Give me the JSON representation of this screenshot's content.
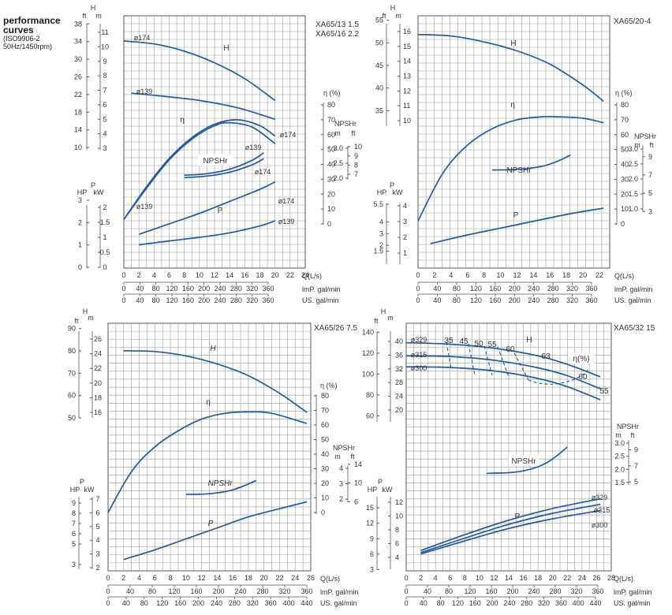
{
  "sidebar": {
    "line1": "performance",
    "line2": "curves",
    "line3": "(ISO9906-2",
    "line4": "50Hz/1450rpm)"
  },
  "style": {
    "curve_color": "#1f5aa6",
    "grid_color": "#9a9a9a",
    "text_color": "#333333"
  },
  "chart_data": [
    {
      "type": "line",
      "model": [
        "XA65/13 1.5",
        "XA65/16 2.2"
      ],
      "x": {
        "label": "Q(L/s)",
        "range": [
          0,
          24
        ],
        "ticks": [
          0,
          2,
          4,
          6,
          8,
          10,
          12,
          14,
          16,
          18,
          20,
          22,
          24
        ],
        "imp_label": "lmP. gal/min",
        "imp_ticks": [
          0,
          40,
          80,
          120,
          160,
          200,
          240,
          280,
          320,
          360
        ],
        "us_label": "US. gal/min",
        "us_ticks": [
          0,
          40,
          80,
          120,
          160,
          200,
          240,
          280,
          320,
          360
        ]
      },
      "head": {
        "unit_ft": "ft",
        "unit_m": "m",
        "title": "H",
        "ft_ticks": [
          10,
          14,
          18,
          22,
          26,
          30,
          34,
          38
        ],
        "m_ticks": [
          3,
          4,
          5,
          6,
          7,
          8,
          9,
          10,
          11
        ]
      },
      "eff": {
        "label": "η (%)",
        "ticks": [
          0,
          10,
          20,
          30,
          40,
          50,
          60,
          70,
          80
        ]
      },
      "npsh": {
        "label": "NPSHr",
        "unit_m": "m",
        "unit_ft": "ft",
        "m_ticks": [
          2.0,
          2.5,
          3.0
        ],
        "ft_ticks": [
          7,
          8,
          9,
          10
        ]
      },
      "power": {
        "label_hp": "HP",
        "label_kw": "kW",
        "title": "P",
        "hp_ticks": [
          0,
          1,
          2,
          3
        ],
        "kw_ticks": [
          0,
          0.5,
          1,
          1.5,
          2
        ]
      },
      "series": [
        {
          "name": "ø174",
          "kind": "H",
          "q": [
            0,
            4,
            8,
            12,
            16,
            20
          ],
          "v": [
            10.4,
            10.2,
            9.7,
            8.9,
            7.8,
            6.3
          ]
        },
        {
          "name": "ø139",
          "kind": "H",
          "q": [
            1,
            5,
            10,
            15,
            20
          ],
          "v": [
            6.8,
            6.6,
            6.3,
            5.8,
            5.0
          ]
        },
        {
          "name": "ø174",
          "kind": "eff",
          "q": [
            0,
            3,
            6,
            9,
            12,
            15,
            18,
            20
          ],
          "v": [
            3,
            25,
            44,
            58,
            67,
            70,
            66,
            59
          ]
        },
        {
          "name": "ø139",
          "kind": "eff",
          "q": [
            0,
            3,
            6,
            9,
            12,
            14,
            17,
            20
          ],
          "v": [
            3,
            24,
            43,
            57,
            66,
            68,
            65,
            54
          ]
        },
        {
          "name": "ø139",
          "kind": "NPSHr",
          "q": [
            8,
            11,
            14,
            17,
            18.5
          ],
          "v": [
            2.1,
            2.15,
            2.3,
            2.6,
            2.85
          ]
        },
        {
          "name": "ø174",
          "kind": "NPSHr",
          "q": [
            8,
            11,
            14,
            17,
            18.5
          ],
          "v": [
            2.02,
            2.07,
            2.2,
            2.45,
            2.65
          ]
        },
        {
          "name": "ø174",
          "kind": "P",
          "q": [
            2,
            6,
            10,
            14,
            18,
            20
          ],
          "v": [
            1.1,
            1.45,
            1.8,
            2.2,
            2.6,
            2.85
          ]
        },
        {
          "name": "ø139",
          "kind": "P",
          "q": [
            2,
            6,
            10,
            14,
            18,
            20
          ],
          "v": [
            0.75,
            0.88,
            1.0,
            1.15,
            1.38,
            1.55
          ]
        }
      ],
      "annotations": {
        "npshr": "NPSHr",
        "h": "H",
        "p": "P",
        "eta": "η",
        "d174": "ø174",
        "d139": "ø139"
      }
    },
    {
      "type": "line",
      "model": [
        "XA65/20-4"
      ],
      "x": {
        "label": "Q(L/s)",
        "range": [
          0,
          22
        ],
        "ticks": [
          0,
          2,
          4,
          6,
          8,
          10,
          12,
          14,
          16,
          18,
          20,
          22
        ],
        "imp_label": "lmP. gal/min",
        "imp_ticks": [
          0,
          40,
          80,
          120,
          160,
          200,
          240,
          280,
          320,
          360
        ],
        "us_label": "US. gal/min",
        "us_ticks": [
          0,
          40,
          80,
          120,
          160,
          200,
          240,
          280,
          320,
          360
        ]
      },
      "head": {
        "unit_ft": "ft",
        "unit_m": "m",
        "title": "H",
        "ft_ticks": [
          35,
          40,
          45,
          50,
          55
        ],
        "m_ticks": [
          10,
          11,
          12,
          13,
          14,
          15,
          16
        ]
      },
      "eff": {
        "label": "η (%)",
        "ticks": [
          0,
          10,
          20,
          30,
          40,
          50,
          60,
          70,
          80
        ]
      },
      "npsh": {
        "label": "NPSHr",
        "unit_m": "m",
        "unit_ft": "ft",
        "m_ticks": [
          1.0,
          1.5,
          2.0,
          2.5,
          3.0
        ],
        "ft_ticks": [
          3,
          5,
          7,
          9
        ]
      },
      "power": {
        "label_hp": "HP",
        "label_kw": "kW",
        "title": "P",
        "hp_ticks": [
          1.5,
          2,
          3,
          4,
          5.5
        ],
        "kw_ticks": [
          1,
          2,
          3,
          4
        ]
      },
      "series": [
        {
          "name": "",
          "kind": "H",
          "q": [
            0,
            4,
            8,
            12,
            16,
            20,
            22.5
          ],
          "v": [
            15.8,
            15.7,
            15.3,
            14.7,
            13.8,
            12.4,
            11.3
          ]
        },
        {
          "name": "",
          "kind": "eff",
          "q": [
            0,
            3,
            6,
            9,
            12,
            15,
            17,
            20,
            22.5
          ],
          "v": [
            2,
            34,
            53,
            64,
            70,
            72,
            72,
            71,
            68
          ]
        },
        {
          "name": "",
          "kind": "NPSHr",
          "q": [
            9,
            12,
            15,
            17,
            18.5
          ],
          "v": [
            2.3,
            2.32,
            2.42,
            2.6,
            2.8
          ]
        },
        {
          "name": "",
          "kind": "P",
          "q": [
            1.5,
            6,
            12,
            18,
            22.5
          ],
          "v": [
            1.6,
            2.15,
            2.8,
            3.45,
            3.85
          ]
        }
      ],
      "annotations": {
        "npshr": "NPSHr",
        "h": "H",
        "p": "P",
        "eta": "η"
      }
    },
    {
      "type": "line",
      "model": [
        "XA65/26 7.5"
      ],
      "x": {
        "label": "Q(L/s)",
        "range": [
          0,
          26
        ],
        "ticks": [
          0,
          2,
          4,
          6,
          8,
          10,
          12,
          14,
          16,
          18,
          20,
          22,
          24,
          26
        ],
        "imp_label": "lmP. gal/min",
        "imp_ticks": [
          0,
          40,
          80,
          120,
          160,
          200,
          240,
          280,
          320,
          360
        ],
        "us_label": "US. gal/min",
        "us_ticks": [
          0,
          40,
          80,
          120,
          160,
          200,
          240,
          280,
          320,
          360,
          400,
          440
        ]
      },
      "head": {
        "unit_ft": "ft",
        "unit_m": "m",
        "title": "H",
        "ft_ticks": [
          50,
          60,
          70,
          80,
          90
        ],
        "m_ticks": [
          16,
          18,
          20,
          22,
          24,
          26
        ]
      },
      "eff": {
        "label": "η (%)",
        "ticks": [
          0,
          10,
          20,
          30,
          40,
          50,
          60,
          70,
          80
        ]
      },
      "npsh": {
        "label": "NPSHr",
        "unit_m": "m",
        "unit_ft": "ft",
        "m_ticks": [
          2,
          3,
          4
        ],
        "ft_ticks": [
          6,
          10,
          14
        ]
      },
      "power": {
        "label_hp": "HP",
        "label_kw": "kW",
        "title": "P",
        "hp_ticks": [
          3,
          5,
          6,
          7,
          8,
          9
        ],
        "kw_ticks": [
          2,
          3,
          4,
          5,
          6,
          7
        ]
      },
      "series": [
        {
          "name": "",
          "kind": "H",
          "q": [
            2,
            6,
            10,
            14,
            18,
            22,
            25.5
          ],
          "v": [
            24.4,
            24.3,
            23.7,
            22.6,
            21.0,
            18.6,
            16.0
          ]
        },
        {
          "name": "",
          "kind": "eff",
          "q": [
            0,
            3,
            6,
            9,
            12,
            15,
            18,
            21,
            25.5
          ],
          "v": [
            0,
            28,
            45,
            56,
            64,
            68,
            69,
            68,
            61
          ]
        },
        {
          "name": "",
          "kind": "NPSHr",
          "q": [
            10,
            13,
            16,
            19
          ],
          "v": [
            2.3,
            2.35,
            2.6,
            3.2
          ]
        },
        {
          "name": "",
          "kind": "P",
          "q": [
            2,
            6,
            10,
            14,
            18,
            22,
            25.5
          ],
          "v": [
            2.6,
            3.3,
            4.1,
            4.9,
            5.7,
            6.3,
            6.8
          ]
        }
      ],
      "annotations": {
        "npshr": "NPSHr",
        "h": "H",
        "p": "P",
        "eta": "η"
      }
    },
    {
      "type": "line",
      "model": [
        "XA65/32 15"
      ],
      "x": {
        "label": "Q(L/s)",
        "range": [
          0,
          28
        ],
        "ticks": [
          0,
          2,
          4,
          6,
          8,
          10,
          12,
          14,
          16,
          18,
          20,
          22,
          24,
          26,
          28
        ],
        "imp_label": "lmP. gal/min",
        "imp_ticks": [
          0,
          40,
          80,
          120,
          160,
          200,
          240,
          280,
          320,
          360
        ],
        "us_label": "US. gal/min",
        "us_ticks": [
          0,
          40,
          80,
          120,
          160,
          200,
          240,
          280,
          320,
          360,
          400,
          440
        ]
      },
      "head": {
        "unit_ft": "ft",
        "unit_m": "m",
        "title": "H",
        "ft_ticks": [
          60,
          80,
          100,
          120,
          140
        ],
        "m_ticks": [
          20,
          24,
          28,
          32,
          36,
          40
        ]
      },
      "eff": {
        "label": "η(%)",
        "contour_labels": [
          "35",
          "45",
          "50",
          "55",
          "60",
          "63",
          "60",
          "55"
        ]
      },
      "npsh": {
        "label": "NPSHr",
        "unit_m": "m",
        "unit_ft": "ft",
        "m_ticks": [
          1.5,
          2.0,
          2.5,
          3.0
        ],
        "ft_ticks": [
          5,
          7,
          9
        ]
      },
      "power": {
        "label_hp": "HP",
        "label_kw": "kW",
        "title": "P",
        "hp_ticks": [
          3,
          6,
          9,
          12,
          15
        ],
        "kw_ticks": [
          4,
          6,
          8,
          10,
          12
        ]
      },
      "series": [
        {
          "name": "ø329",
          "kind": "H",
          "q": [
            0,
            6,
            12,
            18,
            22,
            26.5
          ],
          "v": [
            39.6,
            39.2,
            38.0,
            35.8,
            33.3,
            29.7
          ]
        },
        {
          "name": "ø315",
          "kind": "H",
          "q": [
            0,
            6,
            12,
            18,
            22,
            26.5
          ],
          "v": [
            35.8,
            35.6,
            34.5,
            32.3,
            30.0,
            26.2
          ]
        },
        {
          "name": "ø300",
          "kind": "H",
          "q": [
            0,
            6,
            12,
            18,
            22,
            26.5
          ],
          "v": [
            32.6,
            32.4,
            31.4,
            29.2,
            26.8,
            23.0
          ]
        },
        {
          "name": "",
          "kind": "NPSHr",
          "q": [
            11,
            15,
            18,
            20,
            22
          ],
          "v": [
            1.85,
            1.9,
            2.1,
            2.4,
            2.85
          ]
        },
        {
          "name": "ø329",
          "kind": "P",
          "q": [
            2,
            8,
            14,
            20,
            26.5
          ],
          "v": [
            5.0,
            7.3,
            9.4,
            11.1,
            12.5
          ]
        },
        {
          "name": "ø315",
          "kind": "P",
          "q": [
            2,
            8,
            14,
            20,
            26.5
          ],
          "v": [
            4.7,
            6.8,
            8.8,
            10.4,
            11.7
          ]
        },
        {
          "name": "ø300",
          "kind": "P",
          "q": [
            2,
            8,
            14,
            20,
            26.5
          ],
          "v": [
            4.5,
            6.4,
            8.2,
            9.6,
            10.8
          ]
        }
      ],
      "annotations": {
        "npshr": "NPSHr",
        "h": "H",
        "p": "P",
        "d329": "ø329",
        "d315": "ø315",
        "d300": "ø300"
      }
    }
  ]
}
